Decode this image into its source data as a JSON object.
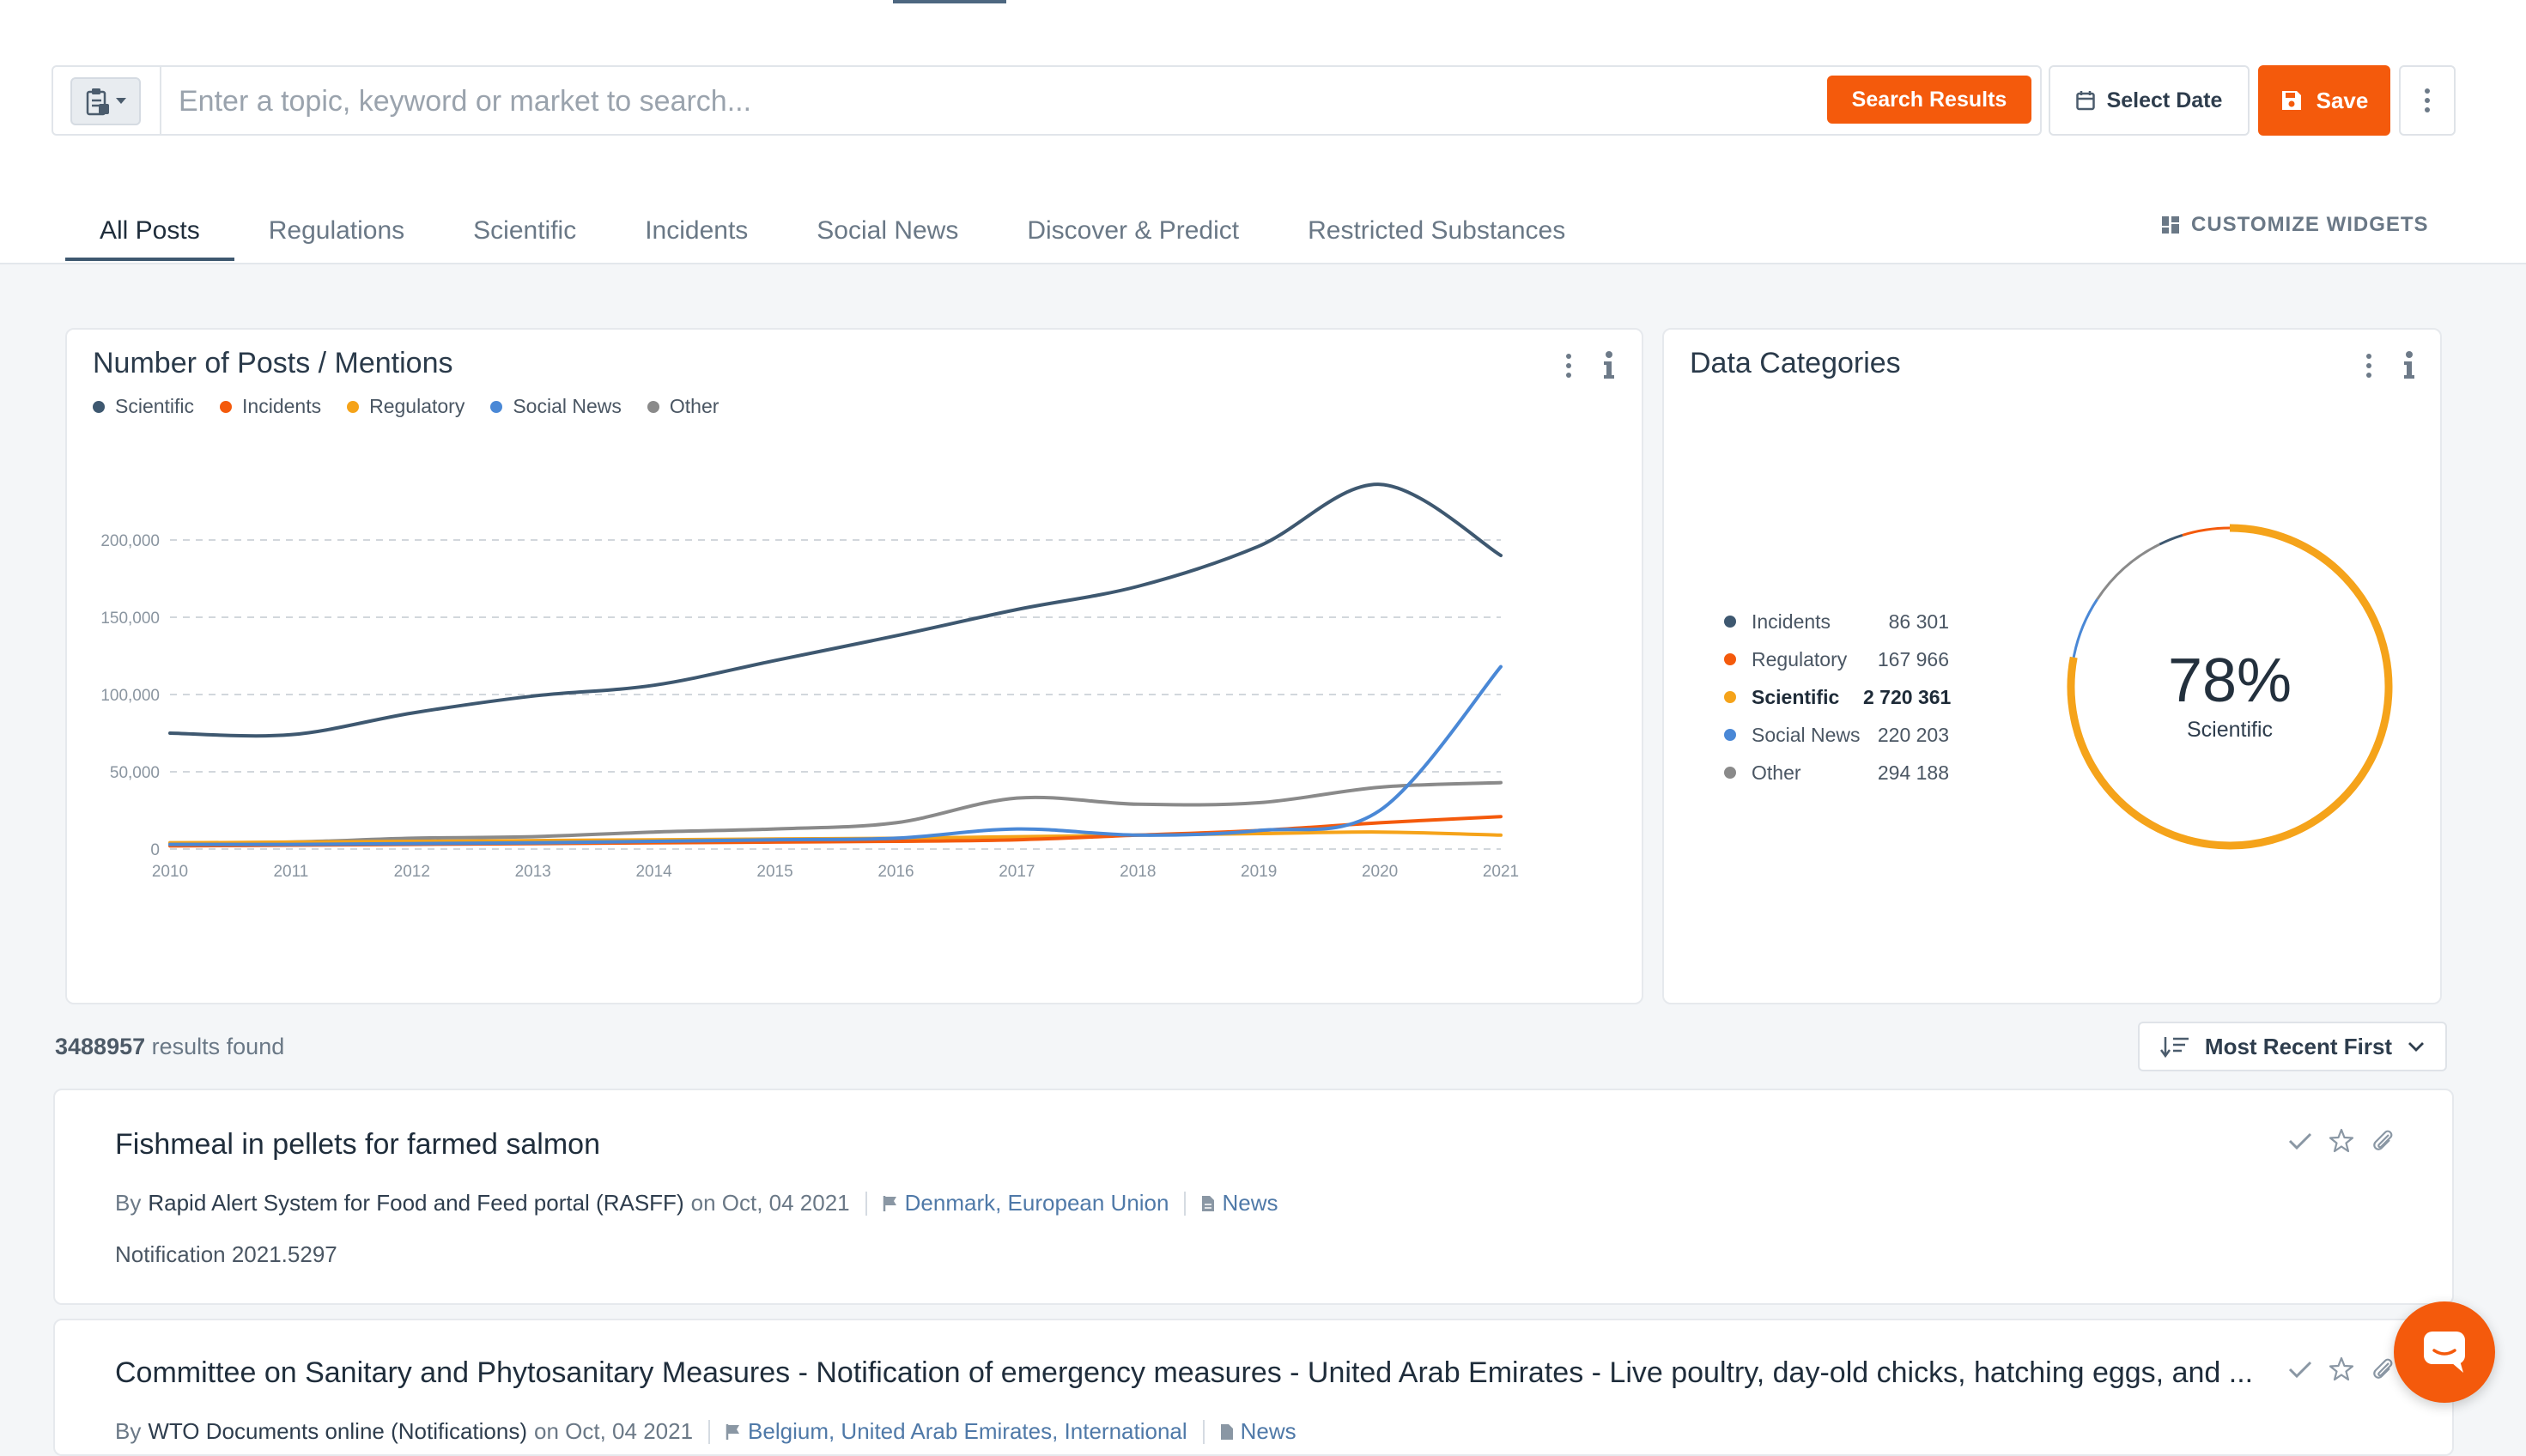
{
  "search": {
    "placeholder": "Enter a topic, keyword or market to search...",
    "value": "",
    "search_results_label": "Search Results",
    "select_date_label": "Select Date",
    "save_label": "Save"
  },
  "tabs": [
    {
      "label": "All Posts",
      "active": true
    },
    {
      "label": "Regulations",
      "active": false
    },
    {
      "label": "Scientific",
      "active": false
    },
    {
      "label": "Incidents",
      "active": false
    },
    {
      "label": "Social News",
      "active": false
    },
    {
      "label": "Discover & Predict",
      "active": false
    },
    {
      "label": "Restricted Substances",
      "active": false
    }
  ],
  "customize_label": "CUSTOMIZE WIDGETS",
  "posts_widget": {
    "title": "Number of Posts / Mentions"
  },
  "categories_widget": {
    "title": "Data Categories",
    "center_percent": "78%",
    "center_label": "Scientific",
    "rows": [
      {
        "name": "Incidents",
        "value": "86 301",
        "color": "#3e5870",
        "bold": false
      },
      {
        "name": "Regulatory",
        "value": "167 966",
        "color": "#f45a0c",
        "bold": false
      },
      {
        "name": "Scientific",
        "value": "2 720 361",
        "color": "#f5a31a",
        "bold": true
      },
      {
        "name": "Social News",
        "value": "220 203",
        "color": "#4a88d6",
        "bold": false
      },
      {
        "name": "Other",
        "value": "294 188",
        "color": "#8a8a8a",
        "bold": false
      }
    ]
  },
  "results": {
    "count": "3488957",
    "suffix": "results found",
    "sort_label": "Most Recent First"
  },
  "items": [
    {
      "title": "Fishmeal in pellets for farmed salmon",
      "by": "By",
      "source": "Rapid Alert System for Food and Feed portal (RASFF)",
      "on": "on Oct, 04 2021",
      "countries": "Denmark, European Union",
      "type": "News",
      "description": "Notification 2021.5297"
    },
    {
      "title": "Committee on Sanitary and Phytosanitary Measures - Notification of emergency measures - United Arab Emirates - Live poultry, day-old chicks, hatching eggs, and ...",
      "by": "By",
      "source": "WTO Documents online (Notifications)",
      "on": "on Oct, 04 2021",
      "countries": "Belgium, United Arab Emirates, International",
      "type": "News",
      "description": ""
    }
  ],
  "chart_data": [
    {
      "type": "line",
      "title": "Number of Posts / Mentions",
      "x": [
        2010,
        2011,
        2012,
        2013,
        2014,
        2015,
        2016,
        2017,
        2018,
        2019,
        2020,
        2021
      ],
      "ylim": [
        0,
        240000
      ],
      "yticks": [
        0,
        50000,
        100000,
        150000,
        200000
      ],
      "ytick_labels": [
        "0",
        "50,000",
        "100,000",
        "150,000",
        "200,000"
      ],
      "grid": true,
      "legend_position": "top-left",
      "series": [
        {
          "name": "Scientific",
          "color": "#3e5870",
          "values": [
            75000,
            74000,
            88000,
            99000,
            106000,
            122000,
            138000,
            155000,
            170000,
            196000,
            236000,
            190000
          ]
        },
        {
          "name": "Incidents",
          "color": "#f45a0c",
          "values": [
            2000,
            2500,
            3000,
            3500,
            4000,
            4500,
            5000,
            6000,
            9000,
            12000,
            17000,
            21000
          ]
        },
        {
          "name": "Regulatory",
          "color": "#f5a31a",
          "values": [
            4000,
            4500,
            5000,
            5500,
            6000,
            6500,
            7000,
            8000,
            9000,
            10000,
            11000,
            9000
          ]
        },
        {
          "name": "Social News",
          "color": "#4a88d6",
          "values": [
            3000,
            3000,
            3500,
            4000,
            5000,
            6000,
            7000,
            13000,
            9000,
            12000,
            25000,
            118000
          ]
        },
        {
          "name": "Other",
          "color": "#8a8a8a",
          "values": [
            4000,
            4500,
            7000,
            8000,
            11000,
            13000,
            17000,
            33000,
            29000,
            30000,
            40000,
            43000
          ]
        }
      ]
    },
    {
      "type": "pie",
      "title": "Data Categories",
      "categories": [
        "Incidents",
        "Regulatory",
        "Scientific",
        "Social News",
        "Other"
      ],
      "values": [
        86301,
        167966,
        2720361,
        220203,
        294188
      ],
      "colors": [
        "#3e5870",
        "#f45a0c",
        "#f5a31a",
        "#4a88d6",
        "#8a8a8a"
      ]
    }
  ]
}
